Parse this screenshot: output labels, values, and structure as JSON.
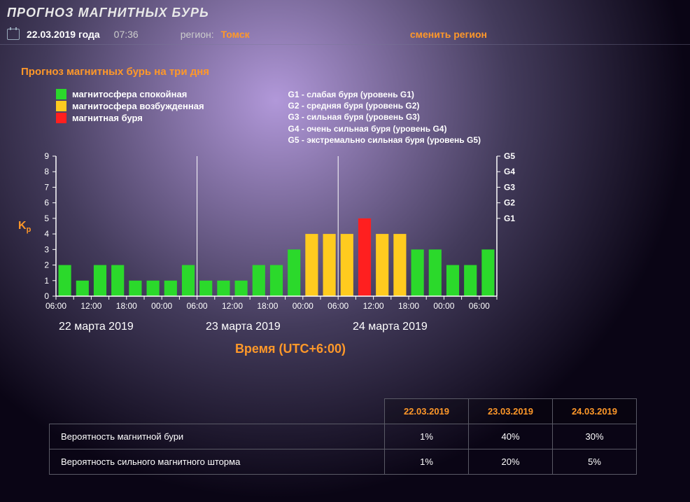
{
  "page_title": "ПРОГНОЗ МАГНИТНЫХ БУРЬ",
  "info": {
    "date": "22.03.2019 года",
    "time": "07:36",
    "region_label": "регион:",
    "region_value": "Томск",
    "change_region": "сменить регион"
  },
  "forecast_title": "Прогноз магнитных бурь на три дня",
  "legend": {
    "states": [
      {
        "color": "#2bd92b",
        "label": "магнитосфера спокойная"
      },
      {
        "color": "#ffcb1f",
        "label": "магнитосфера возбужденная"
      },
      {
        "color": "#ff1f1f",
        "label": "магнитная буря"
      }
    ],
    "g_levels": [
      "G1 - слабая буря (уровень G1)",
      "G2 - средняя буря (уровень G2)",
      "G3 - сильная буря (уровень G3)",
      "G4 - очень сильная буря (уровень G4)",
      "G5 - экстремально сильная буря (уровень G5)"
    ]
  },
  "chart": {
    "type": "bar",
    "y_label": "Kp",
    "ylim": [
      0,
      9
    ],
    "ytick_step": 1,
    "right_ticks": [
      {
        "label": "G1",
        "y": 5
      },
      {
        "label": "G2",
        "y": 6
      },
      {
        "label": "G3",
        "y": 7
      },
      {
        "label": "G4",
        "y": 8
      },
      {
        "label": "G5",
        "y": 9
      }
    ],
    "x_axis_title": "Время (UTC+6:00)",
    "x_dates": [
      "22 марта 2019",
      "23 марта 2019",
      "24 марта 2019"
    ],
    "x_hours": [
      "06:00",
      "",
      "12:00",
      "",
      "18:00",
      "",
      "00:00",
      "",
      "06:00",
      "",
      "12:00",
      "",
      "18:00",
      "",
      "00:00",
      "",
      "06:00",
      "",
      "12:00",
      "",
      "18:00",
      "",
      "00:00",
      "",
      "06:00"
    ],
    "bars": [
      {
        "v": 2,
        "c": "#2bd92b"
      },
      {
        "v": 1,
        "c": "#2bd92b"
      },
      {
        "v": 2,
        "c": "#2bd92b"
      },
      {
        "v": 2,
        "c": "#2bd92b"
      },
      {
        "v": 1,
        "c": "#2bd92b"
      },
      {
        "v": 1,
        "c": "#2bd92b"
      },
      {
        "v": 1,
        "c": "#2bd92b"
      },
      {
        "v": 2,
        "c": "#2bd92b"
      },
      {
        "v": 1,
        "c": "#2bd92b"
      },
      {
        "v": 1,
        "c": "#2bd92b"
      },
      {
        "v": 1,
        "c": "#2bd92b"
      },
      {
        "v": 2,
        "c": "#2bd92b"
      },
      {
        "v": 2,
        "c": "#2bd92b"
      },
      {
        "v": 3,
        "c": "#2bd92b"
      },
      {
        "v": 4,
        "c": "#ffcb1f"
      },
      {
        "v": 4,
        "c": "#ffcb1f"
      },
      {
        "v": 4,
        "c": "#ffcb1f"
      },
      {
        "v": 5,
        "c": "#ff1f1f"
      },
      {
        "v": 4,
        "c": "#ffcb1f"
      },
      {
        "v": 4,
        "c": "#ffcb1f"
      },
      {
        "v": 3,
        "c": "#2bd92b"
      },
      {
        "v": 3,
        "c": "#2bd92b"
      },
      {
        "v": 2,
        "c": "#2bd92b"
      },
      {
        "v": 2,
        "c": "#2bd92b"
      },
      {
        "v": 3,
        "c": "#2bd92b"
      }
    ],
    "plot_bg": "transparent",
    "axis_color": "#ffffff",
    "tick_font_size": 12,
    "bar_width_ratio": 0.72,
    "day_separators": [
      8,
      16
    ]
  },
  "table": {
    "headers": [
      "22.03.2019",
      "23.03.2019",
      "24.03.2019"
    ],
    "rows": [
      {
        "label": "Вероятность магнитной бури",
        "vals": [
          "1%",
          "40%",
          "30%"
        ]
      },
      {
        "label": "Вероятность сильного магнитного шторма",
        "vals": [
          "1%",
          "20%",
          "5%"
        ]
      }
    ]
  }
}
